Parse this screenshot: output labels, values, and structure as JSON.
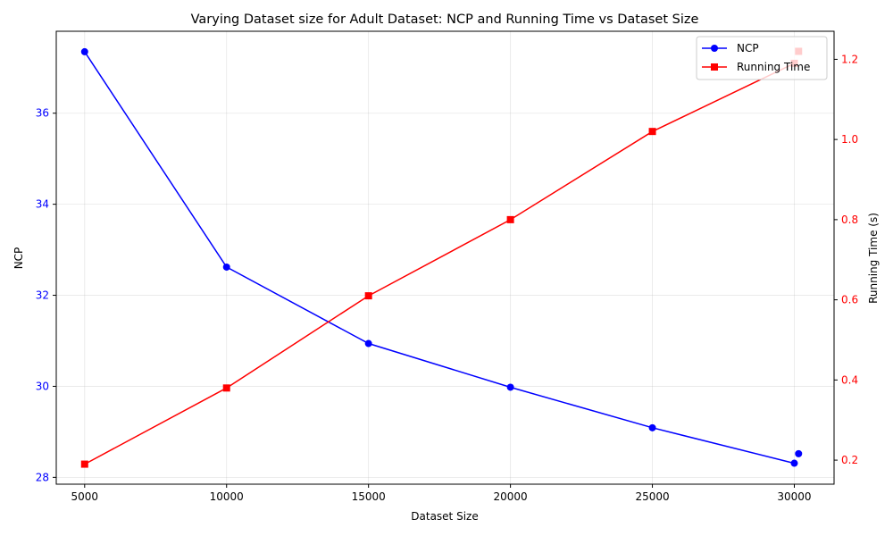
{
  "chart_data": {
    "type": "line",
    "title": "Varying Dataset size for Adult Dataset: NCP and Running Time vs Dataset Size",
    "xlabel": "Dataset Size",
    "x_ticks": [
      5000,
      10000,
      15000,
      20000,
      25000,
      30000
    ],
    "xlim": [
      4000,
      31400
    ],
    "grid": true,
    "legend_position": "top-right",
    "left_axis": {
      "label": "NCP",
      "color": "#0000ff",
      "ylim": [
        27.85,
        37.8
      ],
      "ticks": [
        28,
        30,
        32,
        34,
        36
      ]
    },
    "right_axis": {
      "label": "Running Time (s)",
      "color": "#ff0000",
      "ylim": [
        0.14,
        1.27
      ],
      "ticks": [
        0.2,
        0.4,
        0.6,
        0.8,
        1.0,
        1.2
      ]
    },
    "series": [
      {
        "name": "NCP",
        "axis": "left",
        "color": "#0000ff",
        "marker": "circle",
        "points": [
          {
            "x": 5000,
            "y": 37.35
          },
          {
            "x": 10000,
            "y": 32.62
          },
          {
            "x": 15000,
            "y": 30.94
          },
          {
            "x": 20000,
            "y": 29.98
          },
          {
            "x": 25000,
            "y": 29.09
          },
          {
            "x": 30000,
            "y": 28.31
          }
        ]
      },
      {
        "name": "Running Time",
        "axis": "right",
        "color": "#ff0000",
        "marker": "square",
        "points": [
          {
            "x": 5000,
            "y": 0.19
          },
          {
            "x": 10000,
            "y": 0.38
          },
          {
            "x": 15000,
            "y": 0.61
          },
          {
            "x": 20000,
            "y": 0.8
          },
          {
            "x": 25000,
            "y": 1.02
          },
          {
            "x": 30000,
            "y": 1.19
          }
        ]
      }
    ],
    "legend_markers": [
      {
        "series": "NCP",
        "x": 30150,
        "y": 28.52
      },
      {
        "series": "Running Time",
        "x": 30150,
        "y": 1.22
      }
    ]
  }
}
